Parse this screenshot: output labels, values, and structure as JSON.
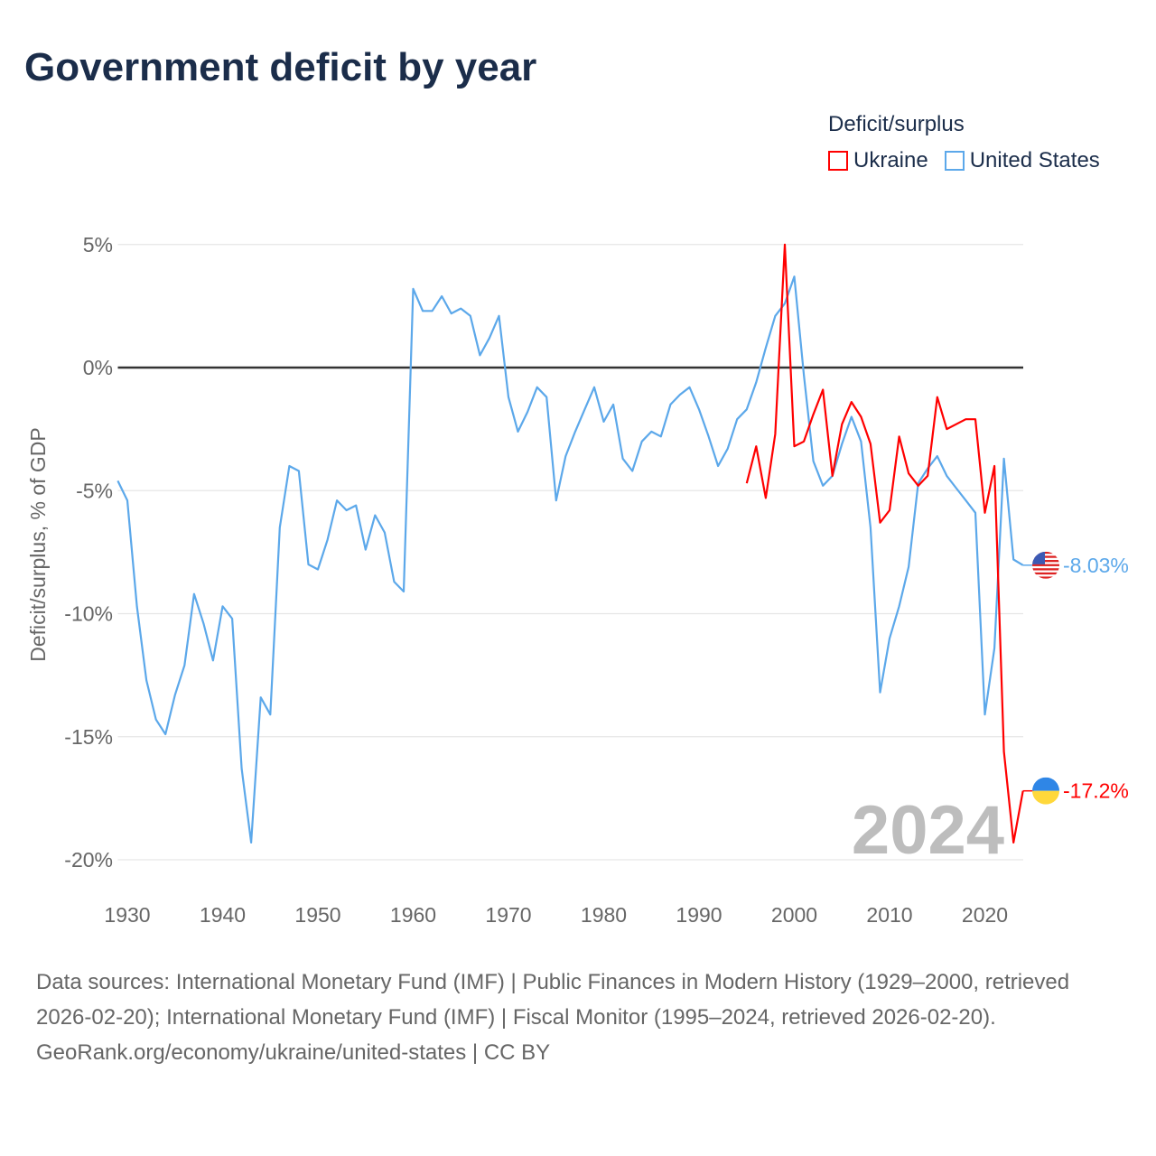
{
  "title": "Government deficit by year",
  "legend": {
    "title": "Deficit/surplus",
    "items": [
      {
        "name": "Ukraine",
        "color": "#ff0000"
      },
      {
        "name": "United States",
        "color": "#5ca8ea"
      }
    ]
  },
  "footer": {
    "sources": "Data sources: International Monetary Fund (IMF) | Public Finances in Modern History (1929–2000, retrieved 2026-02-20); International Monetary Fund (IMF) | Fiscal Monitor (1995–2024, retrieved 2026-02-20).",
    "link": "GeoRank.org/economy/ukraine/united-states | CC BY"
  },
  "chart_data": {
    "type": "line",
    "title": "Government deficit by year",
    "ylabel": "Deficit/surplus, % of GDP",
    "xlabel": "",
    "ylim": [
      -20,
      5
    ],
    "xlim": [
      1929,
      2024
    ],
    "year_watermark": "2024",
    "yticks": [
      {
        "v": 5,
        "label": "5%"
      },
      {
        "v": 0,
        "label": "0%"
      },
      {
        "v": -5,
        "label": "-5%"
      },
      {
        "v": -10,
        "label": "-10%"
      },
      {
        "v": -15,
        "label": "-15%"
      },
      {
        "v": -20,
        "label": "-20%"
      }
    ],
    "xticks": [
      {
        "v": 1930,
        "label": "1930"
      },
      {
        "v": 1940,
        "label": "1940"
      },
      {
        "v": 1950,
        "label": "1950"
      },
      {
        "v": 1960,
        "label": "1960"
      },
      {
        "v": 1970,
        "label": "1970"
      },
      {
        "v": 1980,
        "label": "1980"
      },
      {
        "v": 1990,
        "label": "1990"
      },
      {
        "v": 2000,
        "label": "2000"
      },
      {
        "v": 2010,
        "label": "2010"
      },
      {
        "v": 2020,
        "label": "2020"
      }
    ],
    "series": [
      {
        "name": "United States",
        "color": "#5ca8ea",
        "end_label": "-8.03%",
        "start_year": 1929,
        "values": [
          -4.6,
          -5.4,
          -9.7,
          -12.7,
          -14.3,
          -14.9,
          -13.3,
          -12.1,
          -9.2,
          -10.4,
          -11.9,
          -9.7,
          -10.2,
          -16.3,
          -19.3,
          -13.4,
          -14.1,
          -6.5,
          -4.0,
          -4.2,
          -8.0,
          -8.2,
          -7.0,
          -5.4,
          -5.8,
          -5.6,
          -7.4,
          -6.0,
          -6.7,
          -8.7,
          -9.1,
          3.2,
          2.3,
          2.3,
          2.9,
          2.2,
          2.4,
          2.1,
          0.5,
          1.2,
          2.1,
          -1.2,
          -2.6,
          -1.8,
          -0.8,
          -1.2,
          -5.4,
          -3.6,
          -2.6,
          -1.7,
          -0.8,
          -2.2,
          -1.5,
          -3.7,
          -4.2,
          -3.0,
          -2.6,
          -2.8,
          -1.5,
          -1.1,
          -0.8,
          -1.7,
          -2.8,
          -4.0,
          -3.3,
          -2.1,
          -1.7,
          -0.6,
          0.8,
          2.1,
          2.6,
          3.7,
          -0.3,
          -3.8,
          -4.8,
          -4.4,
          -3.1,
          -2.0,
          -3.0,
          -6.5,
          -13.2,
          -11.0,
          -9.7,
          -8.1,
          -4.7,
          -4.1,
          -3.6,
          -4.4,
          -4.9,
          -5.4,
          -5.9,
          -14.1,
          -11.4,
          -3.7,
          -7.8,
          -8.03
        ]
      },
      {
        "name": "Ukraine",
        "color": "#ff0000",
        "end_label": "-17.2%",
        "start_year": 1995,
        "values": [
          -4.7,
          -3.2,
          -5.3,
          -2.7,
          5.0,
          -3.2,
          -3.0,
          -1.9,
          -0.9,
          -4.4,
          -2.3,
          -1.4,
          -2.0,
          -3.1,
          -6.3,
          -5.8,
          -2.8,
          -4.3,
          -4.8,
          -4.4,
          -1.2,
          -2.5,
          -2.3,
          -2.1,
          -2.1,
          -5.9,
          -4.0,
          -15.6,
          -19.3,
          -17.2
        ]
      }
    ]
  }
}
